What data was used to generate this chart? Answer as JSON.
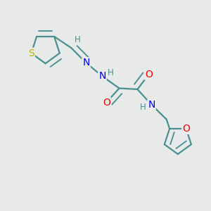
{
  "bg_color": "#e8eaea",
  "bond_color": "#4a9090",
  "bond_width": 1.6,
  "atom_colors": {
    "S": "#b8b800",
    "N": "#0000ee",
    "O": "#ee0000",
    "H": "#4a9090",
    "C": "#4a9090"
  },
  "font_size_atom": 10,
  "font_size_H": 8.5,
  "dbl_sep": 0.09
}
